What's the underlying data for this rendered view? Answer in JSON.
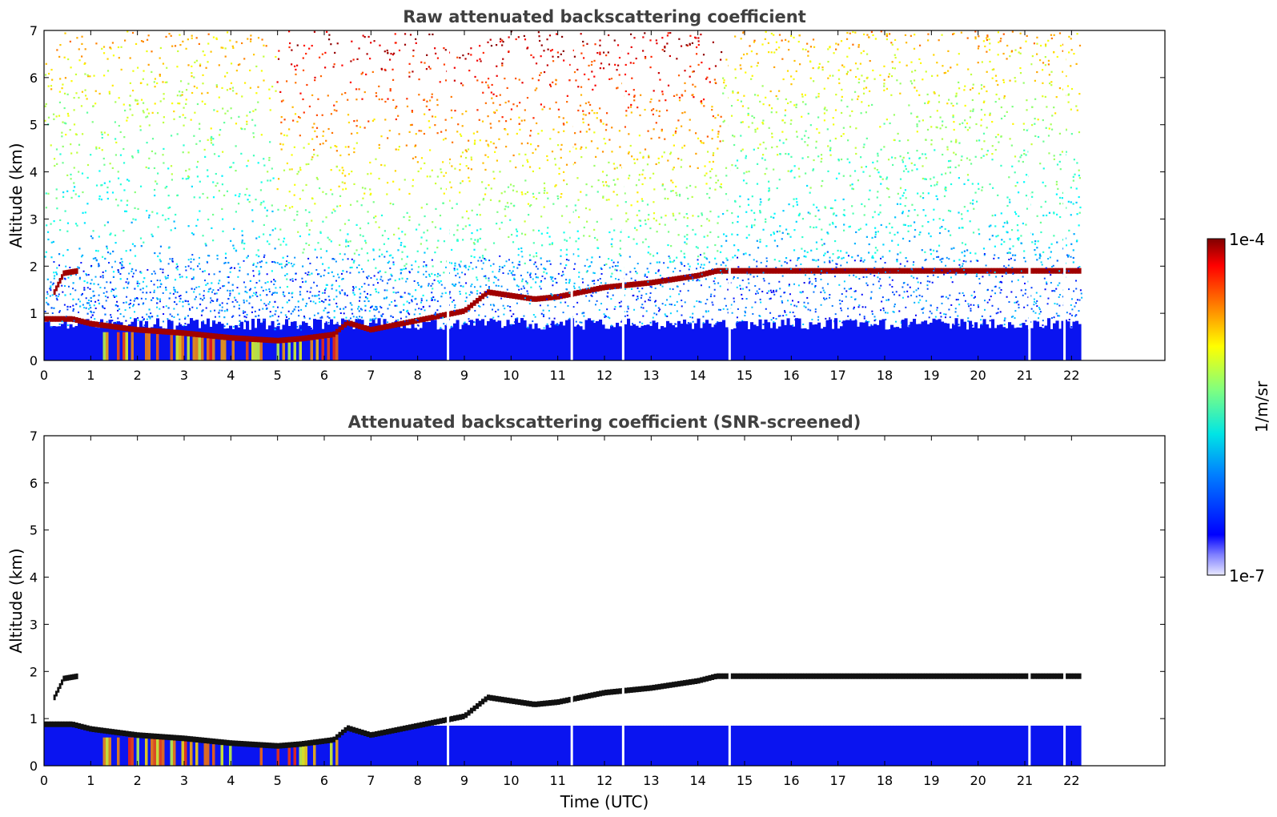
{
  "chart_data": [
    {
      "type": "heatmap",
      "title": "Raw attenuated backscattering coefficient",
      "xlabel": "",
      "ylabel": "Altitude (km)",
      "xlim": [
        0,
        24
      ],
      "ylim": [
        0,
        7
      ],
      "x_ticks": [
        "0",
        "1",
        "2",
        "3",
        "4",
        "5",
        "6",
        "7",
        "8",
        "9",
        "10",
        "11",
        "12",
        "13",
        "14",
        "15",
        "16",
        "17",
        "18",
        "19",
        "20",
        "21",
        "22"
      ],
      "y_ticks": [
        "0",
        "1",
        "2",
        "3",
        "4",
        "5",
        "6",
        "7"
      ],
      "data_extent_hours": [
        0,
        22.15
      ],
      "gaps_hours": [
        8.65,
        11.3,
        12.4,
        14.68,
        21.1,
        21.85
      ],
      "layers": {
        "boundary_layer_top_km": [
          [
            0.6,
            0.88
          ],
          [
            1.0,
            0.78
          ],
          [
            2.0,
            0.65
          ],
          [
            3.0,
            0.58
          ],
          [
            4.0,
            0.48
          ],
          [
            5.0,
            0.42
          ],
          [
            5.5,
            0.46
          ],
          [
            6.2,
            0.55
          ],
          [
            6.5,
            0.8
          ],
          [
            7.0,
            0.65
          ],
          [
            8.0,
            0.85
          ],
          [
            9.0,
            1.05
          ],
          [
            9.5,
            1.45
          ],
          [
            10.5,
            1.3
          ],
          [
            11.0,
            1.35
          ],
          [
            12.0,
            1.55
          ],
          [
            13.0,
            1.65
          ],
          [
            14.0,
            1.8
          ],
          [
            14.4,
            1.9
          ]
        ],
        "elevated_layer_km": [
          [
            0.2,
            1.45
          ],
          [
            0.4,
            1.85
          ],
          [
            0.7,
            1.9
          ]
        ],
        "noise_level": "high"
      },
      "colorbar": {
        "label": "1/m/sr",
        "min_label": "1e-7",
        "max_label": "1e-4",
        "scale": "log"
      }
    },
    {
      "type": "heatmap",
      "title": "Attenuated backscattering coefficient (SNR-screened)",
      "xlabel": "Time (UTC)",
      "ylabel": "Altitude (km)",
      "xlim": [
        0,
        24
      ],
      "ylim": [
        0,
        7
      ],
      "x_ticks": [
        "0",
        "1",
        "2",
        "3",
        "4",
        "5",
        "6",
        "7",
        "8",
        "9",
        "10",
        "11",
        "12",
        "13",
        "14",
        "15",
        "16",
        "17",
        "18",
        "19",
        "20",
        "21",
        "22"
      ],
      "y_ticks": [
        "0",
        "1",
        "2",
        "3",
        "4",
        "5",
        "6",
        "7"
      ],
      "data_extent_hours": [
        0,
        22.15
      ],
      "gaps_hours": [
        8.65,
        11.3,
        12.4,
        14.68,
        21.1,
        21.85
      ],
      "layers": {
        "boundary_layer_top_km": [
          [
            0.6,
            0.88
          ],
          [
            1.0,
            0.78
          ],
          [
            2.0,
            0.65
          ],
          [
            3.0,
            0.58
          ],
          [
            4.0,
            0.48
          ],
          [
            5.0,
            0.42
          ],
          [
            5.5,
            0.46
          ],
          [
            6.2,
            0.55
          ],
          [
            6.5,
            0.8
          ],
          [
            7.0,
            0.65
          ],
          [
            8.0,
            0.85
          ],
          [
            9.0,
            1.05
          ],
          [
            9.5,
            1.45
          ],
          [
            10.5,
            1.3
          ],
          [
            11.0,
            1.35
          ],
          [
            12.0,
            1.55
          ],
          [
            13.0,
            1.65
          ],
          [
            14.0,
            1.8
          ],
          [
            14.4,
            1.9
          ]
        ],
        "elevated_layer_km": [
          [
            0.2,
            1.45
          ],
          [
            0.4,
            1.85
          ],
          [
            0.7,
            1.9
          ]
        ],
        "noise_level": "screened"
      },
      "colorbar": {
        "label": "1/m/sr",
        "min_label": "1e-7",
        "max_label": "1e-4",
        "scale": "log"
      }
    }
  ],
  "colors": {
    "high": "#8b0000",
    "low": "#e8e8ff"
  }
}
